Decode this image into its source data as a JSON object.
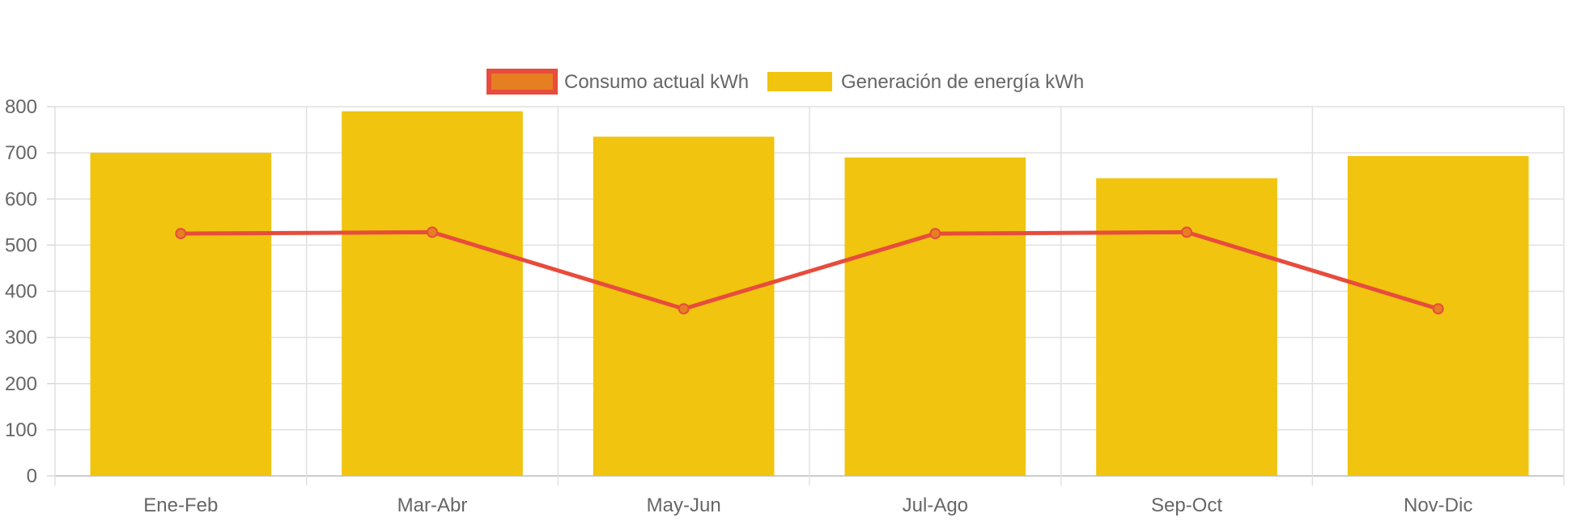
{
  "chart_data": {
    "type": "bar",
    "categories": [
      "Ene-Feb",
      "Mar-Abr",
      "May-Jun",
      "Jul-Ago",
      "Sep-Oct",
      "Nov-Dic"
    ],
    "ylim": [
      0,
      800
    ],
    "yticks": [
      0,
      100,
      200,
      300,
      400,
      500,
      600,
      700,
      800
    ],
    "grid": true,
    "legend_position": "top-center",
    "series": [
      {
        "name": "Consumo actual kWh",
        "type": "line",
        "values": [
          525,
          528,
          362,
          525,
          528,
          362
        ],
        "color": "#e74c3c",
        "fill_color": "#e67e22"
      },
      {
        "name": "Generación de energía kWh",
        "type": "bar",
        "values": [
          700,
          790,
          735,
          690,
          645,
          693
        ],
        "color": "#f1c40f"
      }
    ]
  }
}
